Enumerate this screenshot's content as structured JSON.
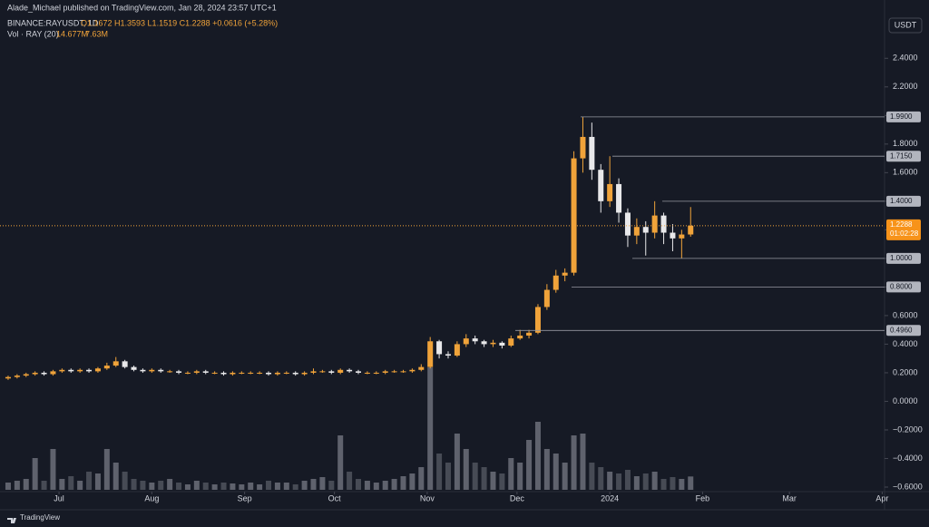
{
  "header": {
    "publisher": "Alade_Michael published on TradingView.com, Jan 28, 2024 23:57 UTC+1",
    "symbol": "BINANCE:RAYUSDT, 1D",
    "ohlc": "O1.1672 H1.3593 L1.1519 C1.2288 +0.0616 (+5.28%)",
    "volume_title": "Vol · RAY (20)",
    "volume_value": "14.677M",
    "volume_ma": "7.63M",
    "currency": "USDT"
  },
  "footer": {
    "logo": "TradingView"
  },
  "chart_data": {
    "type": "candlestick",
    "open": [
      0.16,
      0.17,
      0.18,
      0.19,
      0.2,
      0.19,
      0.21,
      0.22,
      0.21,
      0.22,
      0.21,
      0.23,
      0.25,
      0.28,
      0.24,
      0.22,
      0.21,
      0.22,
      0.21,
      0.21,
      0.2,
      0.2,
      0.21,
      0.2,
      0.2,
      0.19,
      0.2,
      0.2,
      0.2,
      0.2,
      0.19,
      0.2,
      0.2,
      0.19,
      0.2,
      0.21,
      0.21,
      0.2,
      0.22,
      0.21,
      0.2,
      0.2,
      0.2,
      0.21,
      0.21,
      0.21,
      0.22,
      0.24,
      0.42,
      0.33,
      0.32,
      0.4,
      0.44,
      0.42,
      0.4,
      0.41,
      0.39,
      0.44,
      0.46,
      0.48,
      0.66,
      0.78,
      0.88,
      0.9,
      1.7,
      1.85,
      1.62,
      1.4,
      1.52,
      1.32,
      1.16,
      1.22,
      1.18,
      1.3,
      1.18,
      1.14,
      1.1672
    ],
    "high": [
      0.18,
      0.19,
      0.2,
      0.21,
      0.21,
      0.22,
      0.23,
      0.23,
      0.23,
      0.23,
      0.24,
      0.27,
      0.31,
      0.29,
      0.25,
      0.23,
      0.23,
      0.23,
      0.22,
      0.22,
      0.21,
      0.22,
      0.22,
      0.21,
      0.21,
      0.21,
      0.21,
      0.21,
      0.21,
      0.21,
      0.21,
      0.21,
      0.21,
      0.21,
      0.23,
      0.22,
      0.22,
      0.23,
      0.23,
      0.22,
      0.21,
      0.21,
      0.22,
      0.22,
      0.22,
      0.23,
      0.26,
      0.45,
      0.43,
      0.35,
      0.42,
      0.47,
      0.46,
      0.43,
      0.43,
      0.42,
      0.46,
      0.5,
      0.5,
      0.68,
      0.82,
      0.92,
      0.93,
      1.75,
      1.99,
      1.95,
      1.66,
      1.715,
      1.56,
      1.35,
      1.28,
      1.26,
      1.4,
      1.32,
      1.24,
      1.2,
      1.3593
    ],
    "low": [
      0.15,
      0.16,
      0.17,
      0.18,
      0.18,
      0.18,
      0.2,
      0.2,
      0.2,
      0.2,
      0.2,
      0.22,
      0.24,
      0.23,
      0.21,
      0.2,
      0.2,
      0.2,
      0.2,
      0.19,
      0.19,
      0.19,
      0.19,
      0.19,
      0.18,
      0.18,
      0.19,
      0.19,
      0.19,
      0.18,
      0.18,
      0.19,
      0.18,
      0.18,
      0.19,
      0.2,
      0.19,
      0.19,
      0.2,
      0.19,
      0.19,
      0.19,
      0.19,
      0.2,
      0.2,
      0.2,
      0.21,
      0.23,
      0.3,
      0.3,
      0.31,
      0.38,
      0.4,
      0.38,
      0.38,
      0.37,
      0.38,
      0.43,
      0.44,
      0.47,
      0.64,
      0.76,
      0.84,
      0.88,
      1.6,
      1.55,
      1.32,
      1.36,
      1.25,
      1.08,
      1.1,
      1.02,
      1.14,
      1.1,
      1.05,
      1.0,
      1.1519
    ],
    "close": [
      0.17,
      0.18,
      0.19,
      0.2,
      0.19,
      0.21,
      0.22,
      0.21,
      0.22,
      0.21,
      0.23,
      0.25,
      0.28,
      0.24,
      0.22,
      0.21,
      0.22,
      0.21,
      0.21,
      0.2,
      0.2,
      0.21,
      0.2,
      0.2,
      0.19,
      0.2,
      0.2,
      0.2,
      0.2,
      0.19,
      0.2,
      0.2,
      0.19,
      0.2,
      0.21,
      0.21,
      0.2,
      0.22,
      0.21,
      0.2,
      0.2,
      0.2,
      0.21,
      0.21,
      0.21,
      0.22,
      0.24,
      0.42,
      0.33,
      0.32,
      0.4,
      0.44,
      0.42,
      0.4,
      0.41,
      0.39,
      0.44,
      0.46,
      0.48,
      0.66,
      0.78,
      0.88,
      0.9,
      1.7,
      1.85,
      1.62,
      1.4,
      1.52,
      1.32,
      1.16,
      1.22,
      1.18,
      1.3,
      1.18,
      1.14,
      1.1672,
      1.2288
    ],
    "volume": [
      8,
      10,
      12,
      35,
      10,
      45,
      12,
      15,
      10,
      20,
      18,
      45,
      30,
      20,
      12,
      10,
      8,
      10,
      12,
      8,
      6,
      10,
      8,
      6,
      8,
      7,
      6,
      8,
      6,
      10,
      8,
      8,
      6,
      10,
      12,
      14,
      10,
      60,
      20,
      12,
      10,
      8,
      10,
      12,
      15,
      18,
      25,
      135,
      40,
      30,
      62,
      45,
      30,
      25,
      20,
      18,
      35,
      30,
      55,
      75,
      45,
      40,
      30,
      60,
      62,
      30,
      25,
      20,
      18,
      22,
      15,
      18,
      20,
      12,
      14,
      12,
      14.677
    ],
    "up_color": "#f0a33a",
    "down_color": "#e8e8ea",
    "volume_color": "#787b86",
    "xlim": [
      -0.4,
      98.1
    ],
    "ylim": [
      -0.6,
      2.7
    ],
    "vlim": [
      0,
      140
    ],
    "xticks": [
      {
        "value": 5.667,
        "label": "Jul"
      },
      {
        "value": 16,
        "label": "Aug"
      },
      {
        "value": 26.333,
        "label": "Sep"
      },
      {
        "value": 36.333,
        "label": "Oct"
      },
      {
        "value": 46.667,
        "label": "Nov"
      },
      {
        "value": 56.667,
        "label": "Dec"
      },
      {
        "value": 67,
        "label": "2024"
      },
      {
        "value": 77.333,
        "label": "Feb"
      },
      {
        "value": 87,
        "label": "Mar"
      },
      {
        "value": 97.333,
        "label": "Apr"
      }
    ],
    "yticks": [
      {
        "value": 2.4,
        "label": "2.4000"
      },
      {
        "value": 2.2,
        "label": "2.2000"
      },
      {
        "value": 2.0,
        "label": "2.0000"
      },
      {
        "value": 1.8,
        "label": "1.8000"
      },
      {
        "value": 1.6,
        "label": "1.6000"
      },
      {
        "value": 1.4,
        "label": "1.4000"
      },
      {
        "value": 1.2,
        "label": "1.2000"
      },
      {
        "value": 1.0,
        "label": "1.0000"
      },
      {
        "value": 0.8,
        "label": "0.8000"
      },
      {
        "value": 0.6,
        "label": "0.6000"
      },
      {
        "value": 0.4,
        "label": "0.4000"
      },
      {
        "value": 0.2,
        "label": "0.2000"
      },
      {
        "value": 0,
        "label": "0.0000"
      },
      {
        "value": -0.2,
        "label": "−0.2000"
      },
      {
        "value": -0.4,
        "label": "−0.4000"
      },
      {
        "value": -0.6,
        "label": "−0.6000"
      }
    ],
    "levels": [
      {
        "value": 1.99,
        "label": "1.9900"
      },
      {
        "value": 1.715,
        "label": "1.7150"
      },
      {
        "value": 1.4,
        "label": "1.4000"
      },
      {
        "value": 1.0,
        "label": "1.0000"
      },
      {
        "value": 0.8,
        "label": "0.8000"
      },
      {
        "value": 0.496,
        "label": "0.4960"
      }
    ],
    "last": {
      "value": 1.2288,
      "label": "1.2288"
    },
    "countdown": "01:02:28"
  }
}
